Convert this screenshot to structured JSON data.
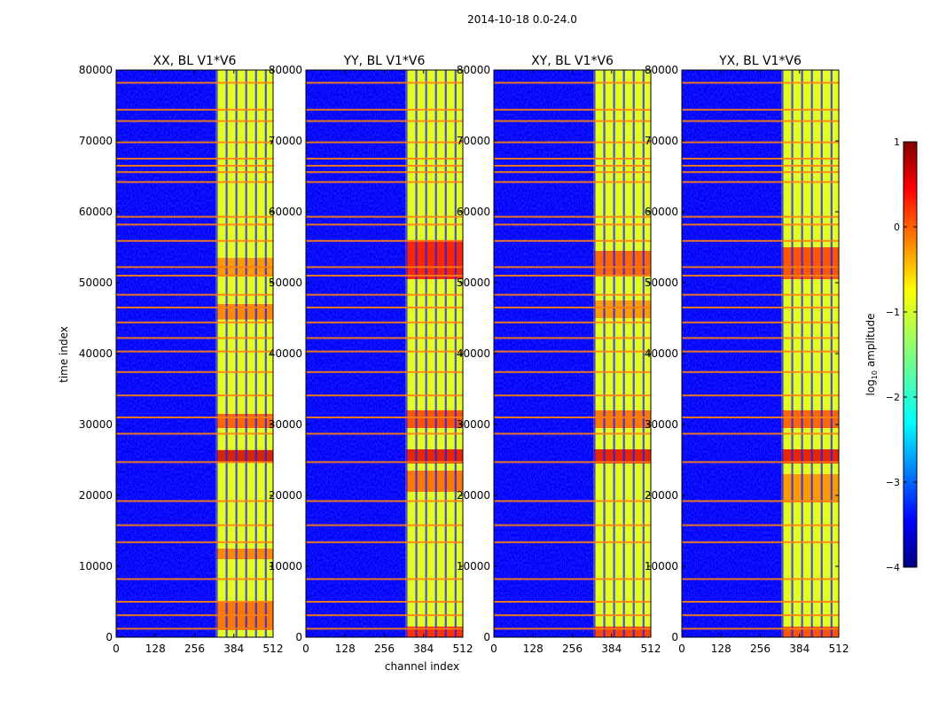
{
  "figure": {
    "suptitle": "2014-10-18 0.0-24.0",
    "xlabel": "channel index",
    "ylabel": "time index"
  },
  "colorbar": {
    "label": "log10 amplitude",
    "colormap": "jet",
    "range": [
      -4,
      1
    ],
    "ticks": [
      1,
      0,
      -1,
      -2,
      -3,
      -4
    ],
    "tick_labels": [
      "1",
      "0",
      "−1",
      "−2",
      "−3",
      "−4"
    ]
  },
  "colors": {
    "saturated_band": "#ff7f0e",
    "gap_band": "#8c8c8c"
  },
  "chart_data": {
    "type": "heatmap",
    "xlim": [
      0,
      512
    ],
    "ylim": [
      0,
      80000
    ],
    "x_ticks": [
      0,
      128,
      256,
      384,
      512
    ],
    "x_tick_labels": [
      "0",
      "128",
      "256",
      "384",
      "512"
    ],
    "y_ticks": [
      0,
      10000,
      20000,
      30000,
      40000,
      50000,
      60000,
      70000,
      80000
    ],
    "y_tick_labels": [
      "0",
      "10000",
      "20000",
      "30000",
      "40000",
      "50000",
      "60000",
      "70000",
      "80000"
    ],
    "background_log_amp": -3.4,
    "bright_channel_range": [
      325,
      512
    ],
    "bright_band_log_amp": -1.0,
    "vertical_gap_channels": [
      328,
      360,
      392,
      424,
      456,
      488
    ],
    "horizontal_orange_lines": [
      1200,
      3100,
      5000,
      8200,
      13400,
      15800,
      19200,
      24700,
      28700,
      31000,
      34100,
      37400,
      40300,
      42200,
      44400,
      46500,
      48300,
      51000,
      52200,
      55900,
      58200,
      59300,
      64200,
      65600,
      66500,
      67500,
      69800,
      72800,
      74400,
      78200
    ],
    "panels": [
      {
        "title": "XX, BL V1*V6",
        "hot_spots": [
          {
            "t_start": 24600,
            "t_end": 26400,
            "log_amp": 0.6
          },
          {
            "t_start": 29500,
            "t_end": 31500,
            "log_amp": 0.0
          },
          {
            "t_start": 44800,
            "t_end": 47000,
            "log_amp": -0.2
          },
          {
            "t_start": 51000,
            "t_end": 53500,
            "log_amp": -0.3
          },
          {
            "t_start": 1000,
            "t_end": 5000,
            "log_amp": -0.1
          },
          {
            "t_start": 11000,
            "t_end": 12500,
            "log_amp": -0.2
          }
        ]
      },
      {
        "title": "YY, BL V1*V6",
        "hot_spots": [
          {
            "t_start": 24500,
            "t_end": 26500,
            "log_amp": 0.5
          },
          {
            "t_start": 29500,
            "t_end": 32000,
            "log_amp": 0.1
          },
          {
            "t_start": 50500,
            "t_end": 56000,
            "log_amp": 0.4
          },
          {
            "t_start": 20500,
            "t_end": 23500,
            "log_amp": -0.1
          },
          {
            "t_start": 0,
            "t_end": 1500,
            "log_amp": 0.3
          }
        ]
      },
      {
        "title": "XY, BL V1*V6",
        "hot_spots": [
          {
            "t_start": 24500,
            "t_end": 26500,
            "log_amp": 0.5
          },
          {
            "t_start": 29500,
            "t_end": 32000,
            "log_amp": -0.1
          },
          {
            "t_start": 51000,
            "t_end": 54500,
            "log_amp": 0.0
          },
          {
            "t_start": 45000,
            "t_end": 47500,
            "log_amp": -0.3
          },
          {
            "t_start": 0,
            "t_end": 1500,
            "log_amp": 0.2
          }
        ]
      },
      {
        "title": "YX, BL V1*V6",
        "hot_spots": [
          {
            "t_start": 24500,
            "t_end": 26500,
            "log_amp": 0.5
          },
          {
            "t_start": 29500,
            "t_end": 32000,
            "log_amp": 0.0
          },
          {
            "t_start": 50500,
            "t_end": 55000,
            "log_amp": 0.1
          },
          {
            "t_start": 19000,
            "t_end": 23000,
            "log_amp": -0.3
          },
          {
            "t_start": 0,
            "t_end": 1500,
            "log_amp": 0.1
          }
        ]
      }
    ]
  }
}
